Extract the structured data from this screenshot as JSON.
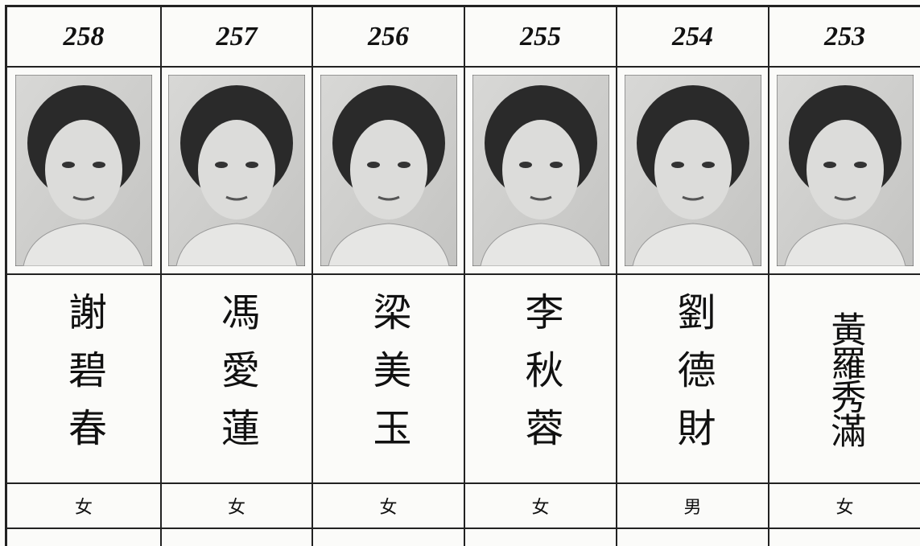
{
  "table": {
    "columns": [
      {
        "number": "258",
        "name": "謝碧春",
        "gender": "女"
      },
      {
        "number": "257",
        "name": "馮愛蓮",
        "gender": "女"
      },
      {
        "number": "256",
        "name": "梁美玉",
        "gender": "女"
      },
      {
        "number": "255",
        "name": "李秋蓉",
        "gender": "女"
      },
      {
        "number": "254",
        "name": "劉德財",
        "gender": "男"
      },
      {
        "number": "253",
        "name": "黃羅秀滿",
        "gender": "女"
      }
    ]
  }
}
